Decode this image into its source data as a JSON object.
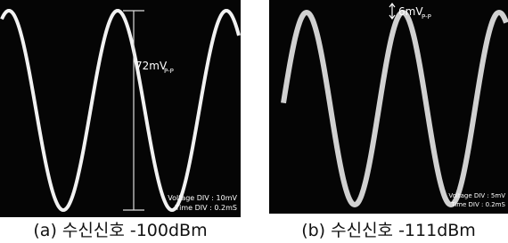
{
  "panels": [
    {
      "amplitude_label": "72mV",
      "amplitude_subscript": "P-P",
      "voltage_div": "Voltage DIV : 10mV",
      "time_div": "Time DIV : 0.2mS",
      "caption": "(a) 수신신호 -100dBm"
    },
    {
      "amplitude_label": "6mV",
      "amplitude_subscript": "P-P",
      "voltage_div": "Voltage DIV : 5mV",
      "time_div": "Time DIV : 0.2mS",
      "caption": "(b) 수신신호 -111dBm"
    }
  ]
}
